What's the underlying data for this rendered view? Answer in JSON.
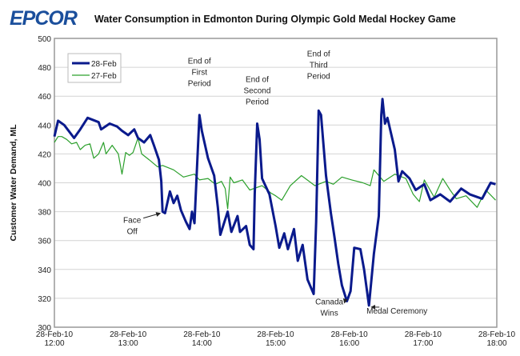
{
  "logo": "EPCOR",
  "chart_data": {
    "type": "line",
    "title": "Water Consumption in Edmonton During Olympic Gold Medal Hockey Game",
    "xlabel": "",
    "ylabel": "Customer Water Demand, ML",
    "ylim": [
      300,
      500
    ],
    "yticks": [
      300,
      320,
      340,
      360,
      380,
      400,
      420,
      440,
      460,
      480,
      500
    ],
    "xlim": [
      "12:00",
      "18:00"
    ],
    "xticks": [
      "28-Feb-10 12:00",
      "28-Feb-10 13:00",
      "28-Feb-10 14:00",
      "28-Feb-10 15:00",
      "28-Feb-10 16:00",
      "28-Feb-10 17:00",
      "28-Feb-10 18:00"
    ],
    "grid": "horizontal",
    "legend": "top-left",
    "series": [
      {
        "name": "28-Feb",
        "color": "#0a1a8c",
        "x": [
          "12:00",
          "12:03",
          "12:08",
          "12:16",
          "12:21",
          "12:27",
          "12:36",
          "12:38",
          "12:45",
          "12:51",
          "12:55",
          "13:00",
          "13:05",
          "13:08",
          "13:13",
          "13:18",
          "13:21",
          "13:25",
          "13:27",
          "13:28",
          "13:30",
          "13:34",
          "13:37",
          "13:40",
          "13:43",
          "13:47",
          "13:50",
          "13:52",
          "13:54",
          "13:56",
          "13:58",
          "14:00",
          "14:05",
          "14:10",
          "14:13",
          "14:15",
          "14:18",
          "14:21",
          "14:24",
          "14:29",
          "14:31",
          "14:36",
          "14:39",
          "14:42",
          "14:43",
          "14:45",
          "14:47",
          "14:49",
          "14:55",
          "15:00",
          "15:03",
          "15:07",
          "15:10",
          "15:15",
          "15:18",
          "15:22",
          "15:26",
          "15:31",
          "15:33",
          "15:35",
          "15:37",
          "15:41",
          "15:45",
          "15:48",
          "15:51",
          "15:54",
          "15:58",
          "16:01",
          "16:04",
          "16:09",
          "16:12",
          "16:16",
          "16:20",
          "16:24",
          "16:26",
          "16:27",
          "16:29",
          "16:31",
          "16:37",
          "16:40",
          "16:43",
          "16:49",
          "16:54",
          "17:01",
          "17:06",
          "17:14",
          "17:22",
          "17:31",
          "17:38",
          "17:48",
          "17:55",
          "17:59"
        ],
        "y": [
          432,
          443,
          440,
          431,
          437,
          445,
          442,
          437,
          441,
          439,
          436,
          433,
          437,
          431,
          428,
          433,
          426,
          416,
          401,
          380,
          379,
          394,
          386,
          391,
          381,
          373,
          368,
          380,
          372,
          410,
          447,
          436,
          417,
          405,
          383,
          364,
          372,
          380,
          366,
          377,
          366,
          370,
          357,
          354,
          392,
          441,
          430,
          403,
          392,
          370,
          355,
          365,
          354,
          368,
          346,
          357,
          333,
          323,
          373,
          450,
          447,
          405,
          379,
          362,
          344,
          329,
          318,
          325,
          355,
          354,
          340,
          315,
          351,
          377,
          447,
          458,
          441,
          445,
          423,
          401,
          408,
          403,
          395,
          399,
          388,
          392,
          387,
          396,
          392,
          389,
          400,
          399
        ]
      },
      {
        "name": "27-Feb",
        "color": "#2ca02c",
        "x": [
          "12:00",
          "12:03",
          "12:06",
          "12:10",
          "12:14",
          "12:18",
          "12:21",
          "12:25",
          "12:29",
          "12:32",
          "12:36",
          "12:40",
          "12:42",
          "12:47",
          "12:52",
          "12:55",
          "12:58",
          "13:01",
          "13:04",
          "13:08",
          "13:11",
          "13:17",
          "13:24",
          "13:28",
          "13:37",
          "13:45",
          "13:54",
          "13:58",
          "14:05",
          "14:11",
          "14:16",
          "14:19",
          "14:21",
          "14:23",
          "14:26",
          "14:33",
          "14:39",
          "14:49",
          "14:56",
          "15:00",
          "15:05",
          "15:12",
          "15:21",
          "15:32",
          "15:41",
          "15:47",
          "15:54",
          "16:02",
          "16:11",
          "16:17",
          "16:20",
          "16:28",
          "16:37",
          "16:46",
          "16:52",
          "16:57",
          "17:01",
          "17:09",
          "17:16",
          "17:22",
          "17:27",
          "17:35",
          "17:44",
          "17:51",
          "17:59"
        ],
        "y": [
          428,
          432,
          432,
          430,
          427,
          428,
          423,
          426,
          427,
          417,
          420,
          428,
          420,
          426,
          420,
          406,
          421,
          419,
          421,
          431,
          420,
          416,
          411,
          412,
          409,
          404,
          406,
          402,
          403,
          399,
          401,
          396,
          382,
          404,
          400,
          402,
          395,
          398,
          393,
          391,
          388,
          398,
          405,
          398,
          401,
          399,
          404,
          402,
          400,
          398,
          409,
          401,
          406,
          403,
          392,
          387,
          402,
          390,
          403,
          395,
          389,
          391,
          383,
          395,
          388
        ]
      }
    ],
    "annotations": [
      {
        "text": "End of First Period",
        "time": "13:58",
        "value": 447
      },
      {
        "text": "End of Second Period",
        "time": "14:45",
        "value": 441
      },
      {
        "text": "End of Third Period",
        "time": "15:35",
        "value": 450
      },
      {
        "text": "Face Off",
        "time": "13:28",
        "value": 380
      },
      {
        "text": "Canada Wins",
        "time": "15:58",
        "value": 318
      },
      {
        "text": "Medal Ceremony",
        "time": "16:16",
        "value": 315
      }
    ]
  }
}
